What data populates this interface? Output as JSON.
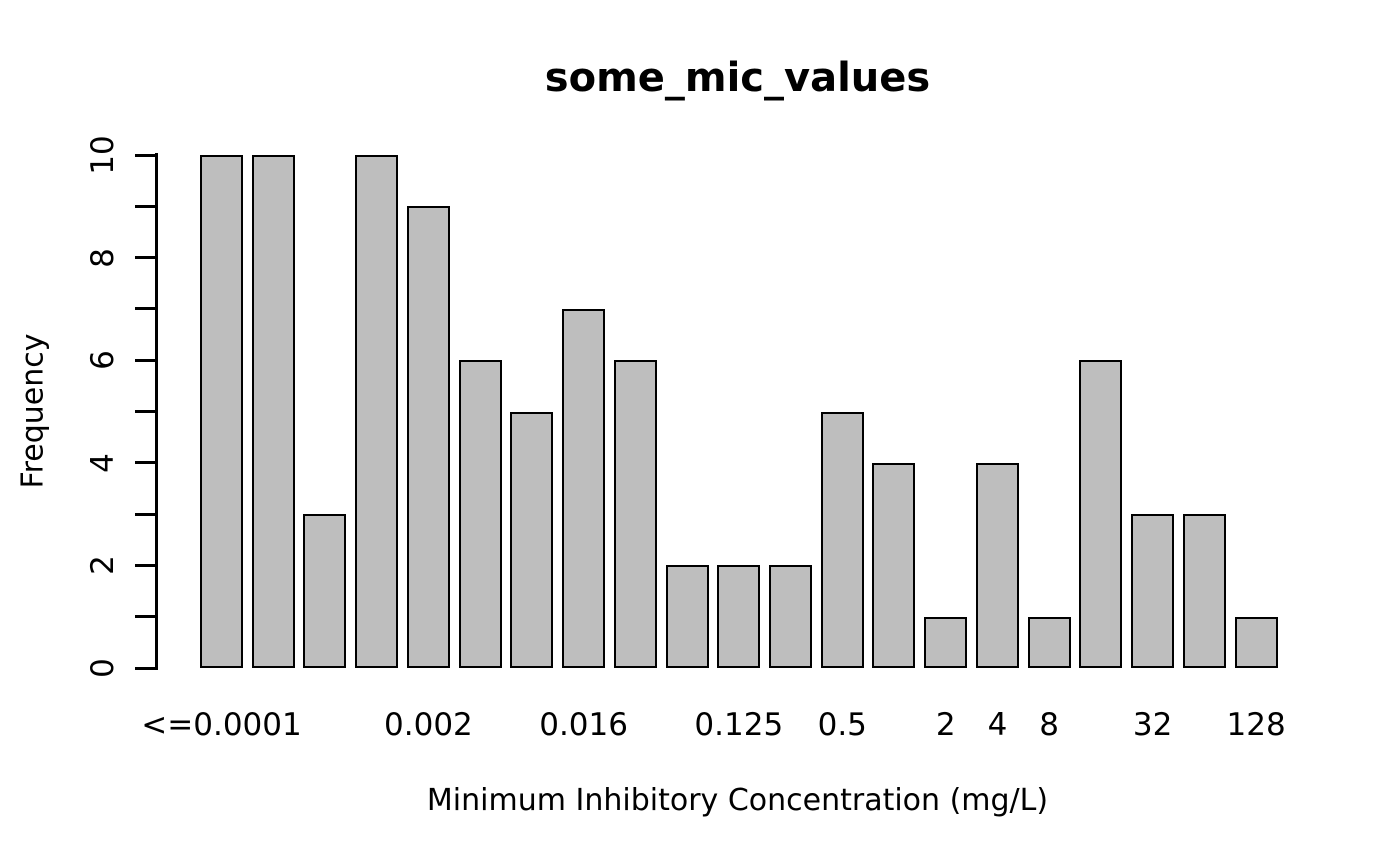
{
  "chart_data": {
    "type": "bar",
    "title": "some_mic_values",
    "xlabel": "Minimum Inhibitory Concentration (mg/L)",
    "ylabel": "Frequency",
    "ylim": [
      0,
      10
    ],
    "y_major_ticks": [
      0,
      2,
      4,
      6,
      8,
      10
    ],
    "y_minor_ticks": [
      1,
      3,
      5,
      7,
      9
    ],
    "n_bars": 21,
    "values": [
      10,
      10,
      3,
      10,
      9,
      6,
      5,
      7,
      6,
      2,
      2,
      2,
      5,
      4,
      1,
      4,
      1,
      6,
      3,
      3,
      1
    ],
    "x_tick_labels": [
      {
        "bar_index": 0,
        "label": "<=0.0001"
      },
      {
        "bar_index": 4,
        "label": "0.002"
      },
      {
        "bar_index": 7,
        "label": "0.016"
      },
      {
        "bar_index": 10,
        "label": "0.125"
      },
      {
        "bar_index": 12,
        "label": "0.5"
      },
      {
        "bar_index": 14,
        "label": "2"
      },
      {
        "bar_index": 15,
        "label": "4"
      },
      {
        "bar_index": 16,
        "label": "8"
      },
      {
        "bar_index": 18,
        "label": "32"
      },
      {
        "bar_index": 20,
        "label": "128"
      }
    ],
    "colors": {
      "bar_fill": "#bebebe",
      "bar_border": "#000000",
      "axis": "#000000",
      "text": "#000000",
      "background": "#ffffff"
    },
    "grid": false,
    "legend_position": "none"
  }
}
